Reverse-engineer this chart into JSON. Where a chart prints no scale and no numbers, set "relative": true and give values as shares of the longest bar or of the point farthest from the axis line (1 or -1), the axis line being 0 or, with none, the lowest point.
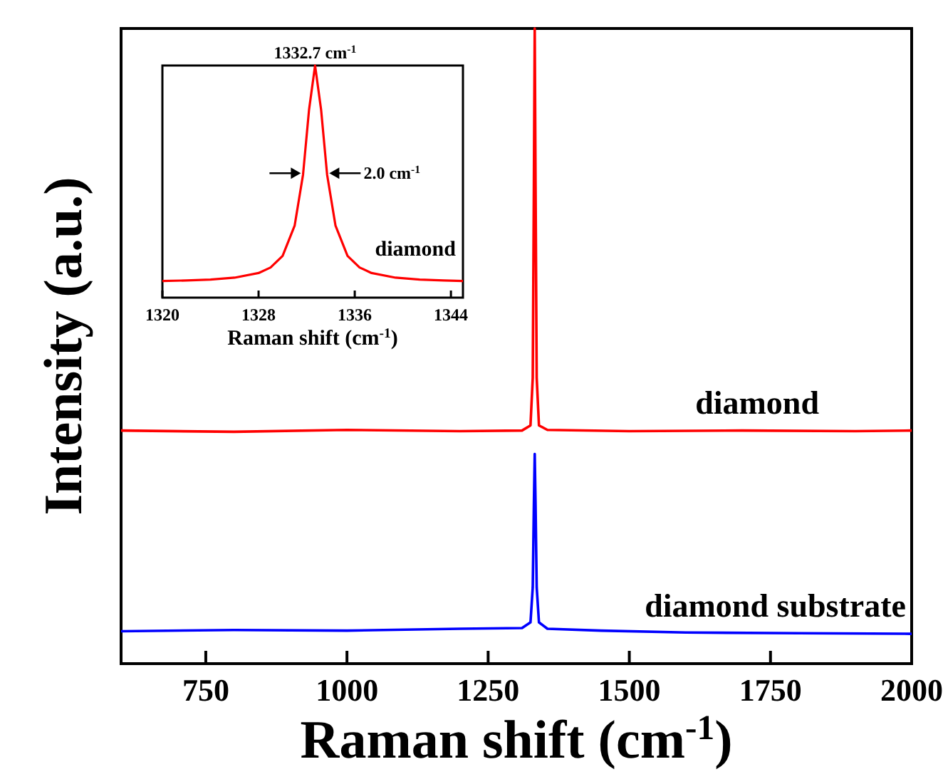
{
  "chart_data": [
    {
      "type": "line",
      "xlabel": "Raman shift (cm$^{-1}$)",
      "ylabel": "Intensity (a.u.)",
      "relative": true,
      "xlim": [
        600,
        2000
      ],
      "xticks": [
        750,
        1000,
        1250,
        1500,
        1750,
        2000
      ],
      "grid": false,
      "marker": "none",
      "line_style": "solid",
      "series": [
        {
          "name": "diamond",
          "color": "#ff0000",
          "x": [
            600,
            800,
            1000,
            1200,
            1310,
            1325,
            1329,
            1331,
            1332.5,
            1334,
            1336,
            1340,
            1355,
            1500,
            1700,
            1900,
            2000
          ],
          "values": [
            0.367,
            0.365,
            0.368,
            0.366,
            0.367,
            0.375,
            0.45,
            0.75,
            1,
            0.75,
            0.45,
            0.375,
            0.368,
            0.366,
            0.367,
            0.366,
            0.367
          ]
        },
        {
          "name": "diamond substrate",
          "color": "#0000ff",
          "x": [
            600,
            800,
            1000,
            1200,
            1310,
            1325,
            1329,
            1331,
            1332.5,
            1334,
            1336,
            1340,
            1355,
            1450,
            1600,
            1800,
            2000
          ],
          "values": [
            0.051,
            0.053,
            0.052,
            0.055,
            0.056,
            0.065,
            0.12,
            0.25,
            0.33,
            0.25,
            0.12,
            0.065,
            0.055,
            0.052,
            0.049,
            0.048,
            0.047
          ]
        }
      ]
    },
    {
      "type": "line",
      "xlabel": "Raman shift (cm$^{-1}$)",
      "relative": true,
      "xlim": [
        1320,
        1345
      ],
      "xticks": [
        1320,
        1328,
        1336,
        1344
      ],
      "grid": false,
      "marker": "none",
      "line_style": "solid",
      "annotations": [
        {
          "text": "1332.7 cm$^{-1}$",
          "x": 1332.7,
          "y": 1
        },
        "2.0 cm$^{-1}$"
      ],
      "series": [
        {
          "name": "diamond",
          "color": "#ff0000",
          "x": [
            1320,
            1322,
            1324,
            1326,
            1328,
            1329,
            1330,
            1331,
            1331.7,
            1332.2,
            1332.7,
            1333.2,
            1333.7,
            1334.4,
            1335.4,
            1336.4,
            1337.4,
            1339.4,
            1341.4,
            1343.4,
            1345
          ],
          "values": [
            0.072,
            0.074,
            0.078,
            0.086,
            0.106,
            0.13,
            0.18,
            0.31,
            0.53,
            0.81,
            1,
            0.81,
            0.53,
            0.31,
            0.18,
            0.13,
            0.106,
            0.086,
            0.078,
            0.074,
            0.072
          ]
        }
      ]
    }
  ]
}
